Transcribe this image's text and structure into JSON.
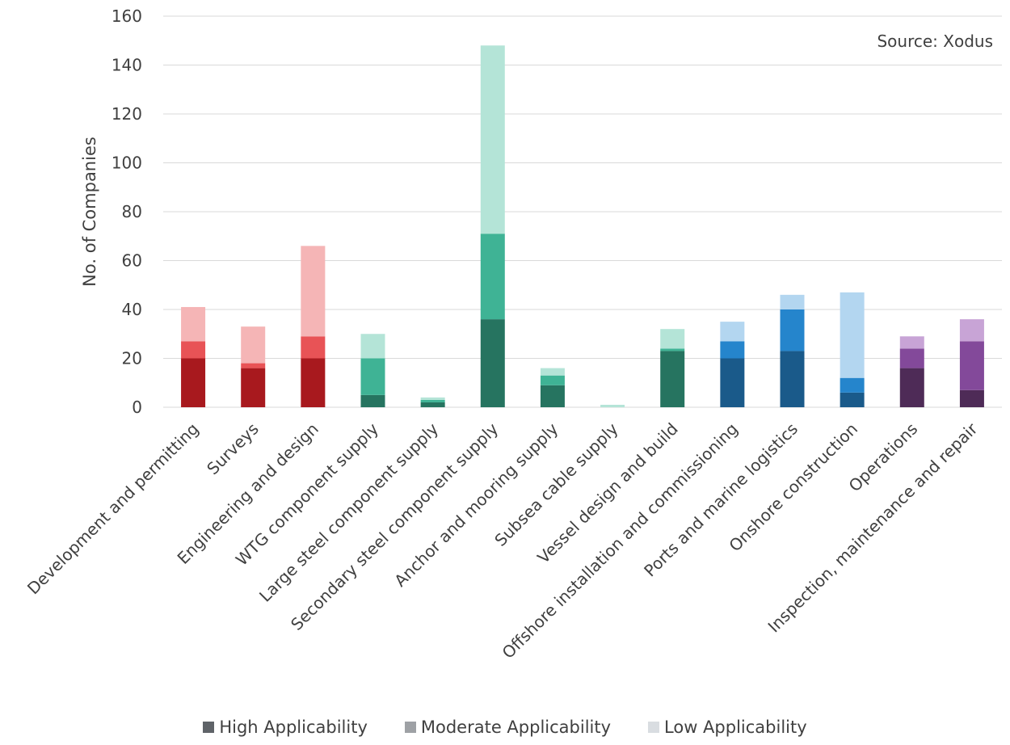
{
  "chart_data": {
    "type": "bar",
    "stacked": true,
    "ylabel": "No. of Companies",
    "xlabel": "",
    "ylim": [
      0,
      160
    ],
    "yticks": [
      0,
      20,
      40,
      60,
      80,
      100,
      120,
      140,
      160
    ],
    "grid": true,
    "annotation": "Source: Xodus",
    "categories": [
      "Development and permitting",
      "Surveys",
      "Engineering and design",
      "WTG component supply",
      "Large steel component supply",
      "Secondary steel component supply",
      "Anchor and mooring supply",
      "Subsea cable supply",
      "Vessel design and build",
      "Offshore installation and commissioning",
      "Ports and marine logistics",
      "Onshore construction",
      "Operations",
      "Inspection, maintenance and repair"
    ],
    "series": [
      {
        "name": "High Applicability",
        "values": [
          20,
          16,
          20,
          5,
          2,
          36,
          9,
          0,
          23,
          20,
          23,
          6,
          16,
          7
        ]
      },
      {
        "name": "Moderate Applicability",
        "values": [
          7,
          2,
          9,
          15,
          1,
          35,
          4,
          0,
          1,
          7,
          17,
          6,
          8,
          20
        ]
      },
      {
        "name": "Low Applicability",
        "values": [
          14,
          15,
          37,
          10,
          1,
          77,
          3,
          1,
          8,
          8,
          6,
          35,
          5,
          9
        ]
      }
    ],
    "category_colors": [
      [
        "#a8191e",
        "#e85356",
        "#f5b5b6"
      ],
      [
        "#a8191e",
        "#e85356",
        "#f5b5b6"
      ],
      [
        "#a8191e",
        "#e85356",
        "#f5b5b6"
      ],
      [
        "#267460",
        "#3fb395",
        "#b4e4d7"
      ],
      [
        "#267460",
        "#3fb395",
        "#b4e4d7"
      ],
      [
        "#267460",
        "#3fb395",
        "#b4e4d7"
      ],
      [
        "#267460",
        "#3fb395",
        "#b4e4d7"
      ],
      [
        "#267460",
        "#3fb395",
        "#b4e4d7"
      ],
      [
        "#267460",
        "#3fb395",
        "#b4e4d7"
      ],
      [
        "#1a5a8a",
        "#2585cc",
        "#b3d6f0"
      ],
      [
        "#1a5a8a",
        "#2585cc",
        "#b3d6f0"
      ],
      [
        "#1a5a8a",
        "#2585cc",
        "#b3d6f0"
      ],
      [
        "#4e2b57",
        "#83499a",
        "#c8a4d6"
      ],
      [
        "#4e2b57",
        "#83499a",
        "#c8a4d6"
      ]
    ],
    "legend": {
      "position": "bottom",
      "items": [
        {
          "label": "High Applicability",
          "color": "#5f6368"
        },
        {
          "label": "Moderate Applicability",
          "color": "#9ea1a5"
        },
        {
          "label": "Low Applicability",
          "color": "#d9dde1"
        }
      ]
    },
    "gridline_color": "#d9d9d9"
  }
}
